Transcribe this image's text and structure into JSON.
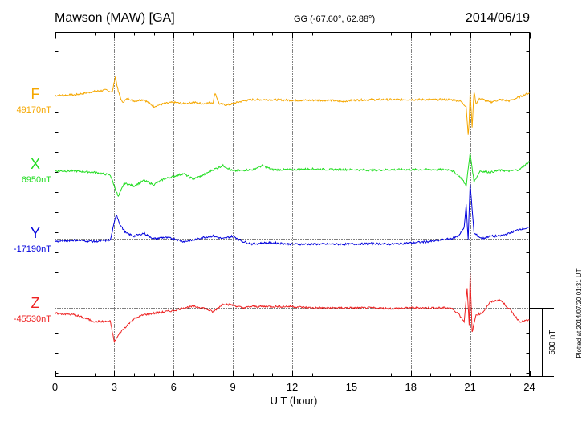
{
  "header": {
    "station": "Mawson (MAW)  [GA]",
    "coords": "GG (-67.60°,  62.88°)",
    "date": "2014/06/19"
  },
  "plotted_note": "Plotted at 2014/07/20 01:31  UT",
  "scale_label": "500 nT",
  "chart_data": {
    "type": "line",
    "title": "Mawson (MAW)  [GA]",
    "xlabel": "U T (hour)",
    "ylabel": "",
    "xlim": [
      0,
      24
    ],
    "x_ticks": [
      "0",
      "3",
      "6",
      "9",
      "12",
      "15",
      "18",
      "21",
      "24"
    ],
    "scale_bar_nT": 500,
    "grid": "dotted verticals every 3 hours, dotted baseline per series",
    "legend": "component letters at left",
    "series": [
      {
        "name": "F",
        "baseline_label": "49170nT",
        "baseline_nT": 49170,
        "color": "#f5a700",
        "offsets_nT": [
          [
            0,
            30
          ],
          [
            1,
            35
          ],
          [
            2,
            60
          ],
          [
            2.6,
            70
          ],
          [
            2.9,
            55
          ],
          [
            3.05,
            170
          ],
          [
            3.2,
            60
          ],
          [
            3.4,
            -20
          ],
          [
            3.7,
            10
          ],
          [
            4,
            -10
          ],
          [
            4.5,
            0
          ],
          [
            5,
            -50
          ],
          [
            5.5,
            -30
          ],
          [
            6,
            -20
          ],
          [
            6.5,
            -30
          ],
          [
            7,
            -20
          ],
          [
            7.5,
            -30
          ],
          [
            8,
            -20
          ],
          [
            8.1,
            50
          ],
          [
            8.3,
            -30
          ],
          [
            8.7,
            -40
          ],
          [
            9,
            -30
          ],
          [
            9.5,
            -10
          ],
          [
            10,
            0
          ],
          [
            11,
            0
          ],
          [
            12,
            -5
          ],
          [
            13,
            -5
          ],
          [
            14,
            -5
          ],
          [
            14.5,
            -15
          ],
          [
            15,
            -5
          ],
          [
            16,
            0
          ],
          [
            17,
            0
          ],
          [
            18,
            0
          ],
          [
            19,
            0
          ],
          [
            20,
            0
          ],
          [
            20.5,
            -10
          ],
          [
            20.8,
            -50
          ],
          [
            20.9,
            -250
          ],
          [
            20.95,
            -170
          ],
          [
            21,
            60
          ],
          [
            21.1,
            -200
          ],
          [
            21.2,
            60
          ],
          [
            21.3,
            -30
          ],
          [
            21.5,
            10
          ],
          [
            22,
            -20
          ],
          [
            22.5,
            0
          ],
          [
            23,
            -10
          ],
          [
            23.5,
            20
          ],
          [
            24,
            50
          ]
        ]
      },
      {
        "name": "X",
        "baseline_label": "6950nT",
        "baseline_nT": 6950,
        "color": "#22dd22",
        "offsets_nT": [
          [
            0,
            -10
          ],
          [
            1,
            -10
          ],
          [
            2,
            -20
          ],
          [
            2.8,
            -40
          ],
          [
            3,
            -120
          ],
          [
            3.2,
            -200
          ],
          [
            3.5,
            -100
          ],
          [
            4,
            -120
          ],
          [
            4.5,
            -80
          ],
          [
            5,
            -110
          ],
          [
            5.5,
            -70
          ],
          [
            6,
            -50
          ],
          [
            6.5,
            -30
          ],
          [
            7,
            -70
          ],
          [
            7.5,
            -40
          ],
          [
            8,
            0
          ],
          [
            8.5,
            30
          ],
          [
            9,
            -10
          ],
          [
            10,
            0
          ],
          [
            10.5,
            30
          ],
          [
            11,
            0
          ],
          [
            12,
            0
          ],
          [
            13,
            5
          ],
          [
            14,
            0
          ],
          [
            15,
            0
          ],
          [
            16,
            -5
          ],
          [
            17,
            0
          ],
          [
            18,
            0
          ],
          [
            19,
            0
          ],
          [
            20,
            0
          ],
          [
            20.3,
            -30
          ],
          [
            20.6,
            -70
          ],
          [
            20.8,
            -120
          ],
          [
            21,
            120
          ],
          [
            21.2,
            -90
          ],
          [
            21.5,
            -10
          ],
          [
            22,
            -20
          ],
          [
            22.5,
            -5
          ],
          [
            23,
            -10
          ],
          [
            23.5,
            0
          ],
          [
            24,
            60
          ]
        ]
      },
      {
        "name": "Y",
        "baseline_label": "-17190nT",
        "baseline_nT": -17190,
        "color": "#0000dd",
        "offsets_nT": [
          [
            0,
            -20
          ],
          [
            1,
            -10
          ],
          [
            2,
            -20
          ],
          [
            2.8,
            -10
          ],
          [
            3.1,
            180
          ],
          [
            3.3,
            100
          ],
          [
            3.6,
            40
          ],
          [
            4,
            20
          ],
          [
            4.5,
            40
          ],
          [
            5,
            0
          ],
          [
            5.5,
            10
          ],
          [
            6,
            0
          ],
          [
            6.5,
            -20
          ],
          [
            7,
            -10
          ],
          [
            7.5,
            10
          ],
          [
            8,
            20
          ],
          [
            8.5,
            0
          ],
          [
            9,
            20
          ],
          [
            9.5,
            -20
          ],
          [
            10,
            -40
          ],
          [
            10.5,
            -30
          ],
          [
            11,
            -30
          ],
          [
            12,
            -40
          ],
          [
            13,
            -40
          ],
          [
            14,
            -40
          ],
          [
            15,
            -40
          ],
          [
            16,
            -35
          ],
          [
            17,
            -40
          ],
          [
            18,
            -30
          ],
          [
            19,
            -20
          ],
          [
            20,
            0
          ],
          [
            20.4,
            20
          ],
          [
            20.7,
            80
          ],
          [
            20.8,
            250
          ],
          [
            20.9,
            0
          ],
          [
            21,
            400
          ],
          [
            21.2,
            40
          ],
          [
            21.4,
            20
          ],
          [
            21.6,
            0
          ],
          [
            22,
            20
          ],
          [
            22.5,
            20
          ],
          [
            23,
            40
          ],
          [
            23.5,
            70
          ],
          [
            24,
            80
          ]
        ]
      },
      {
        "name": "Z",
        "baseline_label": "-45530nT",
        "baseline_nT": -45530,
        "color": "#ee2222",
        "offsets_nT": [
          [
            0,
            -40
          ],
          [
            1,
            -50
          ],
          [
            2,
            -100
          ],
          [
            2.8,
            -100
          ],
          [
            3,
            -250
          ],
          [
            3.3,
            -180
          ],
          [
            3.7,
            -120
          ],
          [
            4,
            -80
          ],
          [
            4.5,
            -50
          ],
          [
            5,
            -40
          ],
          [
            5.5,
            -30
          ],
          [
            6,
            -20
          ],
          [
            6.5,
            0
          ],
          [
            7,
            10
          ],
          [
            7.5,
            0
          ],
          [
            8,
            -30
          ],
          [
            8.5,
            30
          ],
          [
            9,
            20
          ],
          [
            9.5,
            0
          ],
          [
            10,
            10
          ],
          [
            11,
            10
          ],
          [
            12,
            10
          ],
          [
            13,
            0
          ],
          [
            14,
            0
          ],
          [
            15,
            0
          ],
          [
            16,
            0
          ],
          [
            17,
            -5
          ],
          [
            18,
            0
          ],
          [
            19,
            0
          ],
          [
            20,
            0
          ],
          [
            20.4,
            -40
          ],
          [
            20.7,
            -100
          ],
          [
            20.85,
            150
          ],
          [
            20.95,
            -130
          ],
          [
            21,
            250
          ],
          [
            21.1,
            -180
          ],
          [
            21.3,
            -50
          ],
          [
            21.6,
            -40
          ],
          [
            22,
            40
          ],
          [
            22.5,
            60
          ],
          [
            23,
            -10
          ],
          [
            23.5,
            -100
          ],
          [
            24,
            -90
          ]
        ]
      }
    ]
  }
}
